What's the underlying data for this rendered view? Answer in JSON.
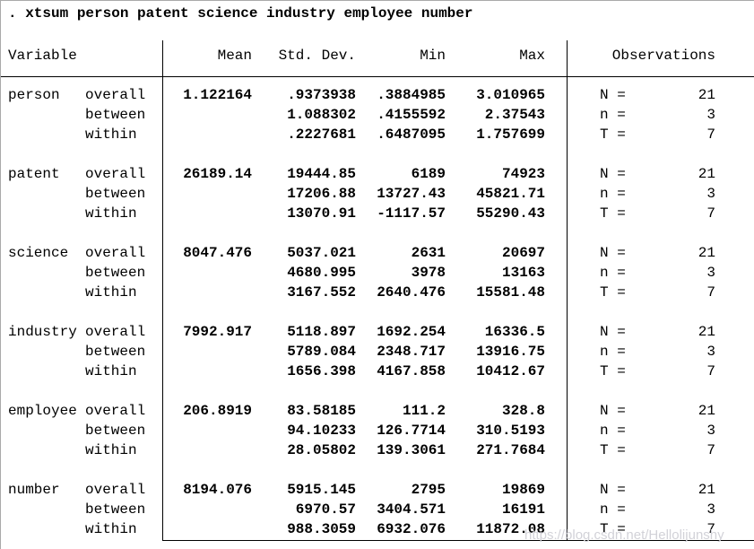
{
  "command": ". xtsum person patent science industry employee number",
  "table": {
    "headers": {
      "variable": "Variable",
      "mean": "Mean",
      "sd": "Std. Dev.",
      "min": "Min",
      "max": "Max",
      "observations": "Observations"
    },
    "blocks": [
      {
        "variable": "person",
        "rows": [
          {
            "level": "overall",
            "mean": "1.122164",
            "sd": ".9373938",
            "min": ".3884985",
            "max": "3.010965",
            "obs_label": "N =",
            "obs_value": "21"
          },
          {
            "level": "between",
            "mean": "",
            "sd": "1.088302",
            "min": ".4155592",
            "max": "2.37543",
            "obs_label": "n =",
            "obs_value": "3"
          },
          {
            "level": "within",
            "mean": "",
            "sd": ".2227681",
            "min": ".6487095",
            "max": "1.757699",
            "obs_label": "T =",
            "obs_value": "7"
          }
        ]
      },
      {
        "variable": "patent",
        "rows": [
          {
            "level": "overall",
            "mean": "26189.14",
            "sd": "19444.85",
            "min": "6189",
            "max": "74923",
            "obs_label": "N =",
            "obs_value": "21"
          },
          {
            "level": "between",
            "mean": "",
            "sd": "17206.88",
            "min": "13727.43",
            "max": "45821.71",
            "obs_label": "n =",
            "obs_value": "3"
          },
          {
            "level": "within",
            "mean": "",
            "sd": "13070.91",
            "min": "-1117.57",
            "max": "55290.43",
            "obs_label": "T =",
            "obs_value": "7"
          }
        ]
      },
      {
        "variable": "science",
        "rows": [
          {
            "level": "overall",
            "mean": "8047.476",
            "sd": "5037.021",
            "min": "2631",
            "max": "20697",
            "obs_label": "N =",
            "obs_value": "21"
          },
          {
            "level": "between",
            "mean": "",
            "sd": "4680.995",
            "min": "3978",
            "max": "13163",
            "obs_label": "n =",
            "obs_value": "3"
          },
          {
            "level": "within",
            "mean": "",
            "sd": "3167.552",
            "min": "2640.476",
            "max": "15581.48",
            "obs_label": "T =",
            "obs_value": "7"
          }
        ]
      },
      {
        "variable": "industry",
        "rows": [
          {
            "level": "overall",
            "mean": "7992.917",
            "sd": "5118.897",
            "min": "1692.254",
            "max": "16336.5",
            "obs_label": "N =",
            "obs_value": "21"
          },
          {
            "level": "between",
            "mean": "",
            "sd": "5789.084",
            "min": "2348.717",
            "max": "13916.75",
            "obs_label": "n =",
            "obs_value": "3"
          },
          {
            "level": "within",
            "mean": "",
            "sd": "1656.398",
            "min": "4167.858",
            "max": "10412.67",
            "obs_label": "T =",
            "obs_value": "7"
          }
        ]
      },
      {
        "variable": "employee",
        "rows": [
          {
            "level": "overall",
            "mean": "206.8919",
            "sd": "83.58185",
            "min": "111.2",
            "max": "328.8",
            "obs_label": "N =",
            "obs_value": "21"
          },
          {
            "level": "between",
            "mean": "",
            "sd": "94.10233",
            "min": "126.7714",
            "max": "310.5193",
            "obs_label": "n =",
            "obs_value": "3"
          },
          {
            "level": "within",
            "mean": "",
            "sd": "28.05802",
            "min": "139.3061",
            "max": "271.7684",
            "obs_label": "T =",
            "obs_value": "7"
          }
        ]
      },
      {
        "variable": "number",
        "rows": [
          {
            "level": "overall",
            "mean": "8194.076",
            "sd": "5915.145",
            "min": "2795",
            "max": "19869",
            "obs_label": "N =",
            "obs_value": "21"
          },
          {
            "level": "between",
            "mean": "",
            "sd": "6970.57",
            "min": "3404.571",
            "max": "16191",
            "obs_label": "n =",
            "obs_value": "3"
          },
          {
            "level": "within",
            "mean": "",
            "sd": "988.3059",
            "min": "6932.076",
            "max": "11872.08",
            "obs_label": "T =",
            "obs_value": "7"
          }
        ]
      }
    ]
  },
  "watermark": "https://blog.csdn.net/Hellolijunshy",
  "colors": {
    "text": "#000000",
    "rule": "#000000",
    "frame_border": "#aaaaaa",
    "watermark": "#d2d2d8"
  }
}
